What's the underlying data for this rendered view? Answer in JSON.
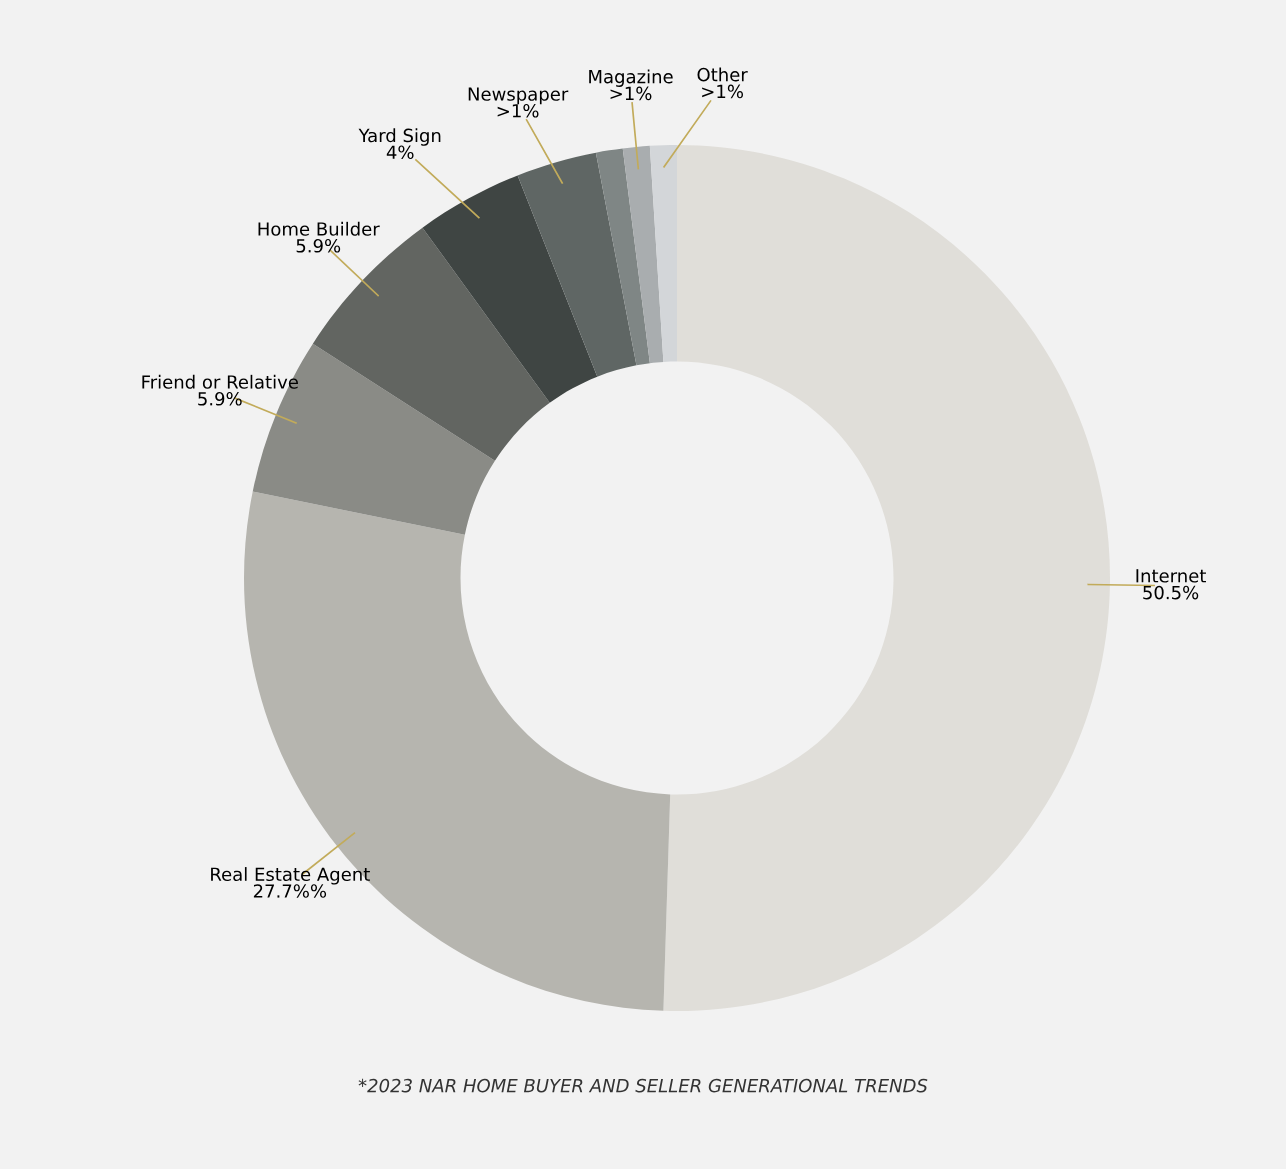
{
  "chart_data": {
    "type": "donut",
    "categories": [
      "Internet",
      "Real Estate Agent",
      "Friend or Relative",
      "Home Builder",
      "Yard Sign",
      "Newspaper",
      null,
      "Magazine",
      "Other"
    ],
    "values": [
      50.5,
      27.7,
      5.9,
      5.9,
      4,
      3,
      1,
      1,
      1
    ],
    "value_labels": [
      "50.5%",
      "27.7%%",
      "5.9%",
      "5.9%",
      "4%",
      ">1%",
      null,
      ">1%",
      ">1%"
    ],
    "colors": [
      "#e0ded9",
      "#b6b5af",
      "#8a8b86",
      "#626561",
      "#3f4543",
      "#5f6664",
      "#7f8685",
      "#a9adaf",
      "#d3d6d9"
    ],
    "annotations": [
      "*2023 NAR HOME BUYER AND SELLER GENERATIONAL TRENDS"
    ],
    "legend": false
  }
}
